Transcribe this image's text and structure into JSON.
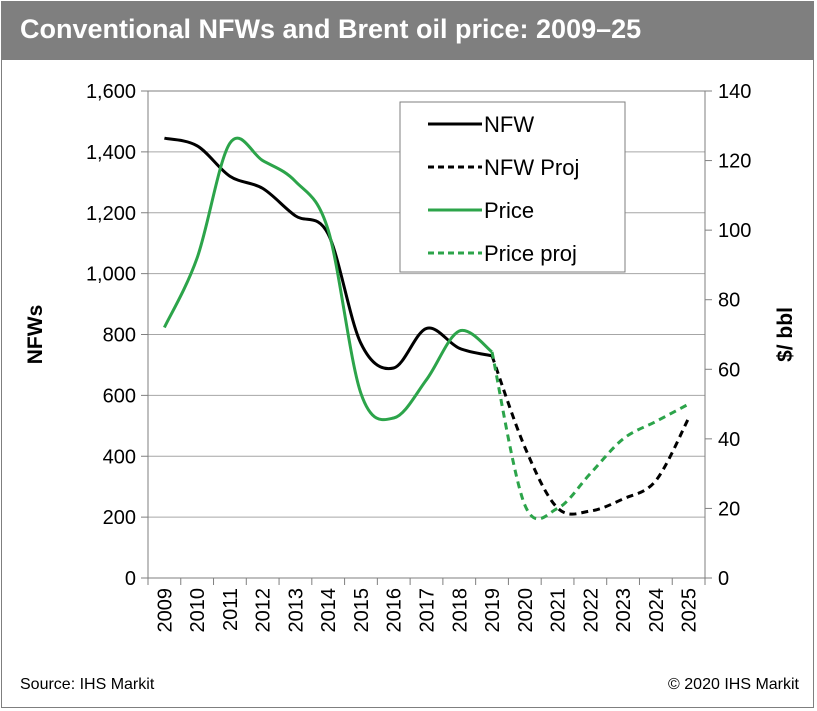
{
  "header": {
    "title": "Conventional NFWs and Brent oil price: 2009–25"
  },
  "footer": {
    "source": "Source: IHS Markit",
    "copyright": "© 2020 IHS Markit"
  },
  "chart_data": {
    "type": "line",
    "title": "Conventional NFWs and Brent oil price: 2009–25",
    "x_categories": [
      "2009",
      "2010",
      "2011",
      "2012",
      "2013",
      "2014",
      "2015",
      "2016",
      "2017",
      "2018",
      "2019",
      "2020",
      "2021",
      "2022",
      "2023",
      "2024",
      "2025"
    ],
    "y_left": {
      "label": "NFWs",
      "min": 0,
      "max": 1600,
      "ticks": [
        "0",
        "200",
        "400",
        "600",
        "800",
        "1,000",
        "1,200",
        "1,400",
        "1,600"
      ]
    },
    "y_right": {
      "label": "$/ bbl",
      "min": 0,
      "max": 140,
      "ticks": [
        "0",
        "20",
        "40",
        "60",
        "80",
        "100",
        "120",
        "140"
      ]
    },
    "grid": true,
    "legend_position": "top-right",
    "legend": [
      "NFW",
      "NFW Proj",
      "Price",
      "Price proj"
    ],
    "series": [
      {
        "name": "NFW",
        "axis": "left",
        "style": "solid",
        "color": "#000000",
        "x": [
          2009,
          2010,
          2011,
          2012,
          2013,
          2014,
          2015,
          2016,
          2017,
          2018,
          2019
        ],
        "values": [
          1445,
          1420,
          1320,
          1280,
          1190,
          1130,
          770,
          690,
          820,
          755,
          730
        ]
      },
      {
        "name": "NFW Proj",
        "axis": "left",
        "style": "dashed",
        "color": "#000000",
        "x": [
          2019,
          2020,
          2021,
          2022,
          2023,
          2024,
          2025
        ],
        "values": [
          730,
          430,
          230,
          220,
          260,
          320,
          525
        ]
      },
      {
        "name": "Price",
        "axis": "right",
        "style": "solid",
        "color": "#2ca44a",
        "x": [
          2009,
          2010,
          2011,
          2012,
          2013,
          2014,
          2015,
          2016,
          2017,
          2018,
          2019
        ],
        "values": [
          72,
          92,
          125,
          120,
          114,
          100,
          53,
          46,
          57,
          71,
          65
        ]
      },
      {
        "name": "Price proj",
        "axis": "right",
        "style": "dashed",
        "color": "#2ca44a",
        "x": [
          2019,
          2020,
          2021,
          2022,
          2023,
          2024,
          2025
        ],
        "values": [
          65,
          21,
          20,
          30,
          40,
          45,
          50
        ]
      }
    ]
  }
}
